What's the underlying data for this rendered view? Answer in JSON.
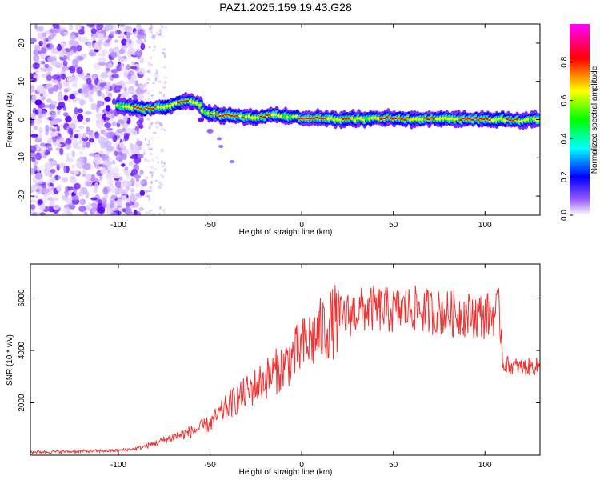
{
  "title": "PAZ1.2025.159.19.43.G28",
  "chart_data": [
    {
      "type": "heatmap",
      "xlabel": "Height of straight line (km)",
      "ylabel": "Frequency (Hz)",
      "xlim": [
        -148,
        130
      ],
      "ylim": [
        -25,
        25
      ],
      "xticks": [
        -100,
        -50,
        0,
        50,
        100
      ],
      "yticks": [
        -20,
        -10,
        0,
        10,
        20
      ],
      "colorbar": {
        "label": "Normalized spectral amplitude",
        "range": [
          0,
          1
        ],
        "ticks": [
          "0.0",
          "0.2",
          "0.4",
          "0.6",
          "0.8"
        ],
        "colors": [
          "#ffffff",
          "#9b5cff",
          "#0000ff",
          "#00ffff",
          "#00ff00",
          "#ffff00",
          "#ff0000",
          "#ff00ff"
        ]
      },
      "ridge": {
        "description_points": [
          [
            -103,
            4.0
          ],
          [
            -95,
            3.5
          ],
          [
            -90,
            3.0
          ],
          [
            -85,
            2.8
          ],
          [
            -80,
            3.0
          ],
          [
            -75,
            3.2
          ],
          [
            -70,
            3.8
          ],
          [
            -65,
            4.5
          ],
          [
            -60,
            4.8
          ],
          [
            -56,
            4.3
          ],
          [
            -53,
            2.0
          ],
          [
            -50,
            1.5
          ],
          [
            -45,
            1.2
          ],
          [
            -40,
            1.0
          ],
          [
            -30,
            0.6
          ],
          [
            -20,
            0.8
          ],
          [
            -15,
            1.4
          ],
          [
            -10,
            0.9
          ],
          [
            0,
            0.5
          ],
          [
            10,
            0.4
          ],
          [
            20,
            0.2
          ],
          [
            30,
            0.1
          ],
          [
            40,
            0.3
          ],
          [
            50,
            0.4
          ],
          [
            60,
            0.2
          ],
          [
            70,
            0.3
          ],
          [
            80,
            0.2
          ],
          [
            90,
            0.1
          ],
          [
            100,
            0.2
          ],
          [
            110,
            0.0
          ],
          [
            120,
            -0.3
          ],
          [
            130,
            0.2
          ]
        ],
        "branch": [
          [
            -60,
            3.0
          ],
          [
            -55,
            0.0
          ],
          [
            -50,
            -3.0
          ],
          [
            -45,
            -5.0
          ],
          [
            -44,
            -7.0
          ],
          [
            -38,
            -11.0
          ]
        ]
      }
    },
    {
      "type": "line",
      "xlabel": "Height of straight line (km)",
      "ylabel": "SNR (10 * v/v)",
      "xlim": [
        -148,
        130
      ],
      "ylim": [
        0,
        7300
      ],
      "xticks": [
        -100,
        -50,
        0,
        50,
        100
      ],
      "yticks": [
        2000,
        4000,
        6000
      ],
      "line_color": "#ee3333",
      "trend": {
        "x": [
          -148,
          -120,
          -100,
          -90,
          -80,
          -70,
          -60,
          -50,
          -40,
          -30,
          -20,
          -10,
          0,
          10,
          20,
          30,
          40,
          50,
          60,
          70,
          80,
          90,
          100,
          108,
          110,
          115,
          120,
          130
        ],
        "y": [
          120,
          150,
          180,
          250,
          450,
          700,
          900,
          1200,
          1900,
          2400,
          2900,
          3400,
          4100,
          4700,
          5200,
          5500,
          5600,
          5500,
          5600,
          5500,
          5400,
          5400,
          5300,
          5500,
          3500,
          3400,
          3350,
          3400
        ]
      }
    }
  ]
}
